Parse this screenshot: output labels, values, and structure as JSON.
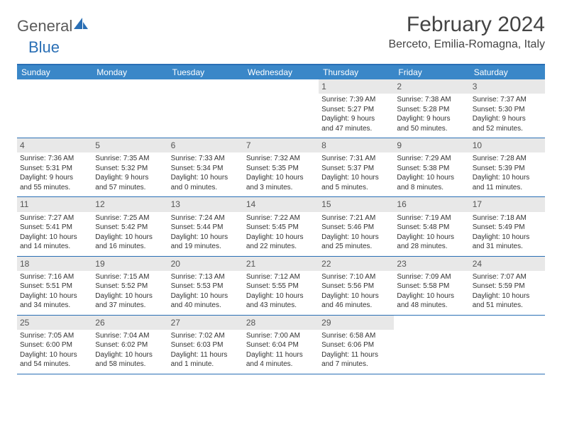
{
  "logo": {
    "part1": "General",
    "part2": "Blue"
  },
  "title": "February 2024",
  "location": "Berceto, Emilia-Romagna, Italy",
  "colors": {
    "header_bar": "#3a87c8",
    "border": "#2a6fb5",
    "daynum_bg": "#e8e8e8",
    "text": "#333333"
  },
  "weekdays": [
    "Sunday",
    "Monday",
    "Tuesday",
    "Wednesday",
    "Thursday",
    "Friday",
    "Saturday"
  ],
  "weeks": [
    [
      {
        "n": "",
        "sr": "",
        "ss": "",
        "d1": "",
        "d2": "",
        "empty": true
      },
      {
        "n": "",
        "sr": "",
        "ss": "",
        "d1": "",
        "d2": "",
        "empty": true
      },
      {
        "n": "",
        "sr": "",
        "ss": "",
        "d1": "",
        "d2": "",
        "empty": true
      },
      {
        "n": "",
        "sr": "",
        "ss": "",
        "d1": "",
        "d2": "",
        "empty": true
      },
      {
        "n": "1",
        "sr": "Sunrise: 7:39 AM",
        "ss": "Sunset: 5:27 PM",
        "d1": "Daylight: 9 hours",
        "d2": "and 47 minutes."
      },
      {
        "n": "2",
        "sr": "Sunrise: 7:38 AM",
        "ss": "Sunset: 5:28 PM",
        "d1": "Daylight: 9 hours",
        "d2": "and 50 minutes."
      },
      {
        "n": "3",
        "sr": "Sunrise: 7:37 AM",
        "ss": "Sunset: 5:30 PM",
        "d1": "Daylight: 9 hours",
        "d2": "and 52 minutes."
      }
    ],
    [
      {
        "n": "4",
        "sr": "Sunrise: 7:36 AM",
        "ss": "Sunset: 5:31 PM",
        "d1": "Daylight: 9 hours",
        "d2": "and 55 minutes."
      },
      {
        "n": "5",
        "sr": "Sunrise: 7:35 AM",
        "ss": "Sunset: 5:32 PM",
        "d1": "Daylight: 9 hours",
        "d2": "and 57 minutes."
      },
      {
        "n": "6",
        "sr": "Sunrise: 7:33 AM",
        "ss": "Sunset: 5:34 PM",
        "d1": "Daylight: 10 hours",
        "d2": "and 0 minutes."
      },
      {
        "n": "7",
        "sr": "Sunrise: 7:32 AM",
        "ss": "Sunset: 5:35 PM",
        "d1": "Daylight: 10 hours",
        "d2": "and 3 minutes."
      },
      {
        "n": "8",
        "sr": "Sunrise: 7:31 AM",
        "ss": "Sunset: 5:37 PM",
        "d1": "Daylight: 10 hours",
        "d2": "and 5 minutes."
      },
      {
        "n": "9",
        "sr": "Sunrise: 7:29 AM",
        "ss": "Sunset: 5:38 PM",
        "d1": "Daylight: 10 hours",
        "d2": "and 8 minutes."
      },
      {
        "n": "10",
        "sr": "Sunrise: 7:28 AM",
        "ss": "Sunset: 5:39 PM",
        "d1": "Daylight: 10 hours",
        "d2": "and 11 minutes."
      }
    ],
    [
      {
        "n": "11",
        "sr": "Sunrise: 7:27 AM",
        "ss": "Sunset: 5:41 PM",
        "d1": "Daylight: 10 hours",
        "d2": "and 14 minutes."
      },
      {
        "n": "12",
        "sr": "Sunrise: 7:25 AM",
        "ss": "Sunset: 5:42 PM",
        "d1": "Daylight: 10 hours",
        "d2": "and 16 minutes."
      },
      {
        "n": "13",
        "sr": "Sunrise: 7:24 AM",
        "ss": "Sunset: 5:44 PM",
        "d1": "Daylight: 10 hours",
        "d2": "and 19 minutes."
      },
      {
        "n": "14",
        "sr": "Sunrise: 7:22 AM",
        "ss": "Sunset: 5:45 PM",
        "d1": "Daylight: 10 hours",
        "d2": "and 22 minutes."
      },
      {
        "n": "15",
        "sr": "Sunrise: 7:21 AM",
        "ss": "Sunset: 5:46 PM",
        "d1": "Daylight: 10 hours",
        "d2": "and 25 minutes."
      },
      {
        "n": "16",
        "sr": "Sunrise: 7:19 AM",
        "ss": "Sunset: 5:48 PM",
        "d1": "Daylight: 10 hours",
        "d2": "and 28 minutes."
      },
      {
        "n": "17",
        "sr": "Sunrise: 7:18 AM",
        "ss": "Sunset: 5:49 PM",
        "d1": "Daylight: 10 hours",
        "d2": "and 31 minutes."
      }
    ],
    [
      {
        "n": "18",
        "sr": "Sunrise: 7:16 AM",
        "ss": "Sunset: 5:51 PM",
        "d1": "Daylight: 10 hours",
        "d2": "and 34 minutes."
      },
      {
        "n": "19",
        "sr": "Sunrise: 7:15 AM",
        "ss": "Sunset: 5:52 PM",
        "d1": "Daylight: 10 hours",
        "d2": "and 37 minutes."
      },
      {
        "n": "20",
        "sr": "Sunrise: 7:13 AM",
        "ss": "Sunset: 5:53 PM",
        "d1": "Daylight: 10 hours",
        "d2": "and 40 minutes."
      },
      {
        "n": "21",
        "sr": "Sunrise: 7:12 AM",
        "ss": "Sunset: 5:55 PM",
        "d1": "Daylight: 10 hours",
        "d2": "and 43 minutes."
      },
      {
        "n": "22",
        "sr": "Sunrise: 7:10 AM",
        "ss": "Sunset: 5:56 PM",
        "d1": "Daylight: 10 hours",
        "d2": "and 46 minutes."
      },
      {
        "n": "23",
        "sr": "Sunrise: 7:09 AM",
        "ss": "Sunset: 5:58 PM",
        "d1": "Daylight: 10 hours",
        "d2": "and 48 minutes."
      },
      {
        "n": "24",
        "sr": "Sunrise: 7:07 AM",
        "ss": "Sunset: 5:59 PM",
        "d1": "Daylight: 10 hours",
        "d2": "and 51 minutes."
      }
    ],
    [
      {
        "n": "25",
        "sr": "Sunrise: 7:05 AM",
        "ss": "Sunset: 6:00 PM",
        "d1": "Daylight: 10 hours",
        "d2": "and 54 minutes."
      },
      {
        "n": "26",
        "sr": "Sunrise: 7:04 AM",
        "ss": "Sunset: 6:02 PM",
        "d1": "Daylight: 10 hours",
        "d2": "and 58 minutes."
      },
      {
        "n": "27",
        "sr": "Sunrise: 7:02 AM",
        "ss": "Sunset: 6:03 PM",
        "d1": "Daylight: 11 hours",
        "d2": "and 1 minute."
      },
      {
        "n": "28",
        "sr": "Sunrise: 7:00 AM",
        "ss": "Sunset: 6:04 PM",
        "d1": "Daylight: 11 hours",
        "d2": "and 4 minutes."
      },
      {
        "n": "29",
        "sr": "Sunrise: 6:58 AM",
        "ss": "Sunset: 6:06 PM",
        "d1": "Daylight: 11 hours",
        "d2": "and 7 minutes."
      },
      {
        "n": "",
        "sr": "",
        "ss": "",
        "d1": "",
        "d2": "",
        "empty": true
      },
      {
        "n": "",
        "sr": "",
        "ss": "",
        "d1": "",
        "d2": "",
        "empty": true
      }
    ]
  ]
}
